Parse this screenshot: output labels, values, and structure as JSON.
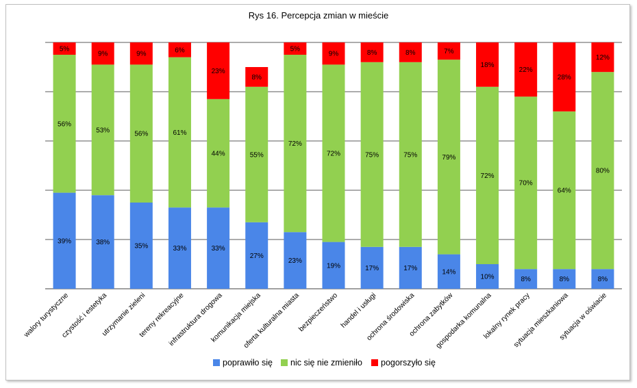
{
  "chart_data": {
    "type": "bar",
    "stacked": true,
    "title": "Rys 16. Percepcja zmian w mieście",
    "xlabel": "",
    "ylabel": "",
    "ylim": [
      0,
      100
    ],
    "grid": true,
    "legend_position": "bottom",
    "categories": [
      "walory turystyczne",
      "czystość i estetyka",
      "utrzymanie zieleni",
      "tereny rekreacyjne",
      "infrastruktura drogowa",
      "komunikacja miejska",
      "oferta kulturalna miasta",
      "bezpieczeństwo",
      "handel i usługi",
      "ochrona środowiska",
      "ochrona zabytków",
      "gospodarka komunalna",
      "lokalny rynek pracy",
      "sytuacja mieszkaniowa",
      "sytuacja w oświacie"
    ],
    "series": [
      {
        "name": "poprawiło się",
        "color": "#4a86e8",
        "values": [
          39,
          38,
          35,
          33,
          33,
          27,
          23,
          19,
          17,
          17,
          14,
          10,
          8,
          8,
          8
        ]
      },
      {
        "name": "nic się nie zmieniło",
        "color": "#92d050",
        "values": [
          56,
          53,
          56,
          61,
          44,
          55,
          72,
          72,
          75,
          75,
          79,
          72,
          70,
          64,
          80
        ]
      },
      {
        "name": "pogorszyło się",
        "color": "#ff0000",
        "values": [
          5,
          9,
          9,
          6,
          23,
          8,
          5,
          9,
          8,
          8,
          7,
          18,
          22,
          28,
          12
        ]
      }
    ],
    "value_suffix": "%"
  }
}
